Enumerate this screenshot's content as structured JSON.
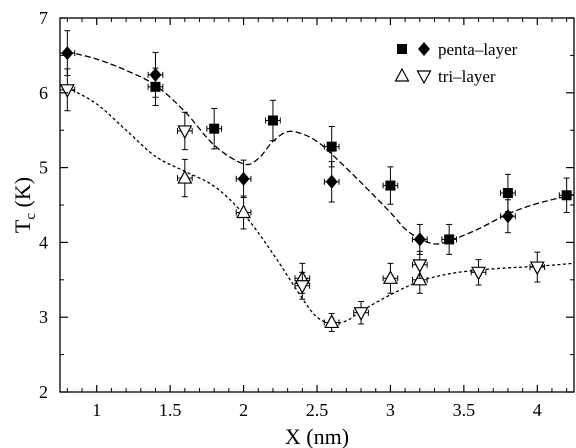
{
  "chart_data": {
    "type": "scatter",
    "title": "",
    "xlabel": "X  (nm)",
    "ylabel_main": "T",
    "ylabel_sub": "c",
    "ylabel_unit": " (K)",
    "xlim": [
      0.75,
      4.25
    ],
    "ylim": [
      2,
      7
    ],
    "xticks": [
      1,
      1.5,
      2,
      2.5,
      3,
      3.5,
      4
    ],
    "xtick_labels": [
      "1",
      "1.5",
      "2",
      "2.5",
      "3",
      "3.5",
      "4"
    ],
    "yticks": [
      2,
      3,
      4,
      5,
      6,
      7
    ],
    "ytick_labels": [
      "2",
      "3",
      "4",
      "5",
      "6",
      "7"
    ],
    "legend": {
      "placement": "top-right",
      "entries": [
        {
          "markers": [
            "square-filled",
            "diamond-filled"
          ],
          "label": "penta–layer"
        },
        {
          "markers": [
            "triangle-up-open",
            "triangle-down-open"
          ],
          "label": "tri–layer"
        }
      ]
    },
    "series": [
      {
        "group": "penta-layer",
        "marker": "square-filled",
        "points": [
          {
            "x": 1.4,
            "y": 6.08,
            "xerr": 0.05,
            "yerr": 0.25
          },
          {
            "x": 1.8,
            "y": 5.52,
            "xerr": 0.05,
            "yerr": 0.27
          },
          {
            "x": 2.2,
            "y": 5.63,
            "xerr": 0.05,
            "yerr": 0.27
          },
          {
            "x": 2.6,
            "y": 5.28,
            "xerr": 0.05,
            "yerr": 0.27
          },
          {
            "x": 3.0,
            "y": 4.76,
            "xerr": 0.05,
            "yerr": 0.25
          },
          {
            "x": 3.4,
            "y": 4.04,
            "xerr": 0.05,
            "yerr": 0.2
          },
          {
            "x": 3.8,
            "y": 4.66,
            "xerr": 0.05,
            "yerr": 0.25
          },
          {
            "x": 4.2,
            "y": 4.63,
            "xerr": 0.05,
            "yerr": 0.23
          }
        ]
      },
      {
        "group": "penta-layer",
        "marker": "diamond-filled",
        "points": [
          {
            "x": 0.8,
            "y": 6.53,
            "xerr": 0.05,
            "yerr": 0.3
          },
          {
            "x": 1.4,
            "y": 6.24,
            "xerr": 0.05,
            "yerr": 0.3
          },
          {
            "x": 2.0,
            "y": 4.85,
            "xerr": 0.05,
            "yerr": 0.25
          },
          {
            "x": 2.6,
            "y": 4.81,
            "xerr": 0.05,
            "yerr": 0.27
          },
          {
            "x": 3.2,
            "y": 4.04,
            "xerr": 0.05,
            "yerr": 0.2
          },
          {
            "x": 3.8,
            "y": 4.35,
            "xerr": 0.05,
            "yerr": 0.22
          }
        ]
      },
      {
        "group": "tri-layer",
        "marker": "triangle-up-open",
        "points": [
          {
            "x": 1.6,
            "y": 4.86,
            "xerr": 0.05,
            "yerr": 0.25
          },
          {
            "x": 2.0,
            "y": 4.4,
            "xerr": 0.05,
            "yerr": 0.22
          },
          {
            "x": 2.4,
            "y": 3.52,
            "xerr": 0.05,
            "yerr": 0.2
          },
          {
            "x": 2.6,
            "y": 2.93,
            "xerr": 0.05,
            "yerr": 0.12
          },
          {
            "x": 3.0,
            "y": 3.52,
            "xerr": 0.05,
            "yerr": 0.2
          },
          {
            "x": 3.2,
            "y": 3.5,
            "xerr": 0.05,
            "yerr": 0.18
          }
        ]
      },
      {
        "group": "tri-layer",
        "marker": "triangle-down-open",
        "points": [
          {
            "x": 0.8,
            "y": 6.04,
            "xerr": 0.05,
            "yerr": 0.28
          },
          {
            "x": 1.6,
            "y": 5.49,
            "xerr": 0.05,
            "yerr": 0.25
          },
          {
            "x": 2.4,
            "y": 3.42,
            "xerr": 0.05,
            "yerr": 0.18
          },
          {
            "x": 2.8,
            "y": 3.06,
            "xerr": 0.05,
            "yerr": 0.15
          },
          {
            "x": 3.2,
            "y": 3.7,
            "xerr": 0.05,
            "yerr": 0.18
          },
          {
            "x": 3.6,
            "y": 3.6,
            "xerr": 0.05,
            "yerr": 0.17
          },
          {
            "x": 4.0,
            "y": 3.67,
            "xerr": 0.05,
            "yerr": 0.2
          }
        ]
      }
    ],
    "fit_curves": [
      {
        "group": "penta-layer",
        "style": "dashed",
        "points": [
          [
            0.8,
            6.55
          ],
          [
            1.0,
            6.45
          ],
          [
            1.2,
            6.3
          ],
          [
            1.4,
            6.1
          ],
          [
            1.6,
            5.75
          ],
          [
            1.8,
            5.3
          ],
          [
            2.0,
            5.05
          ],
          [
            2.1,
            5.12
          ],
          [
            2.2,
            5.35
          ],
          [
            2.3,
            5.48
          ],
          [
            2.4,
            5.45
          ],
          [
            2.5,
            5.35
          ],
          [
            2.6,
            5.18
          ],
          [
            2.8,
            4.8
          ],
          [
            3.0,
            4.4
          ],
          [
            3.1,
            4.18
          ],
          [
            3.2,
            4.05
          ],
          [
            3.3,
            3.98
          ],
          [
            3.4,
            4.02
          ],
          [
            3.6,
            4.18
          ],
          [
            3.8,
            4.38
          ],
          [
            4.0,
            4.52
          ],
          [
            4.25,
            4.64
          ]
        ]
      },
      {
        "group": "tri-layer",
        "style": "dotted",
        "points": [
          [
            0.8,
            6.07
          ],
          [
            1.0,
            5.85
          ],
          [
            1.2,
            5.5
          ],
          [
            1.4,
            5.15
          ],
          [
            1.6,
            4.95
          ],
          [
            1.8,
            4.75
          ],
          [
            2.0,
            4.38
          ],
          [
            2.2,
            3.85
          ],
          [
            2.4,
            3.25
          ],
          [
            2.5,
            3.0
          ],
          [
            2.6,
            2.92
          ],
          [
            2.7,
            2.95
          ],
          [
            2.8,
            3.08
          ],
          [
            3.0,
            3.3
          ],
          [
            3.2,
            3.48
          ],
          [
            3.4,
            3.58
          ],
          [
            3.6,
            3.63
          ],
          [
            3.8,
            3.66
          ],
          [
            4.0,
            3.68
          ],
          [
            4.25,
            3.72
          ]
        ]
      }
    ]
  }
}
